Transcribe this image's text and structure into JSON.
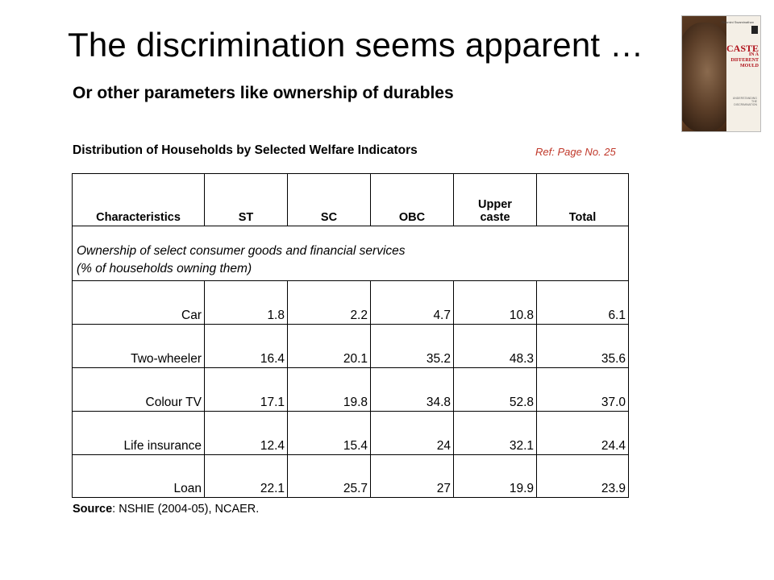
{
  "slide": {
    "title": "The discrimination seems apparent …",
    "subtitle": "Or other parameters like ownership of durables",
    "caption": "Distribution of Households by Selected Welfare Indicators",
    "reference": "Ref: Page No. 25"
  },
  "book_cover": {
    "author": "Rukmini Swaminathan",
    "title_lines": [
      "CASTE",
      "IN A",
      "DIFFERENT",
      "MOULD"
    ],
    "tagline": "UNDERSTANDING THE DISCRIMINATION",
    "accent_color": "#b0121b"
  },
  "table": {
    "headers": {
      "characteristics": "Characteristics",
      "st": "ST",
      "sc": "SC",
      "obc": "OBC",
      "upper_caste": "Upper caste",
      "total": "Total"
    },
    "section_line1": "Ownership of select consumer goods and financial services",
    "section_line2": "(% of households owning them)",
    "rows": [
      {
        "label": "Car",
        "st": "1.8",
        "sc": "2.2",
        "obc": "4.7",
        "upper": "10.8",
        "total": "6.1"
      },
      {
        "label": "Two-wheeler",
        "st": "16.4",
        "sc": "20.1",
        "obc": "35.2",
        "upper": "48.3",
        "total": "35.6"
      },
      {
        "label": "Colour TV",
        "st": "17.1",
        "sc": "19.8",
        "obc": "34.8",
        "upper": "52.8",
        "total": "37.0"
      },
      {
        "label": "Life insurance",
        "st": "12.4",
        "sc": "15.4",
        "obc": "24",
        "upper": "32.1",
        "total": "24.4"
      },
      {
        "label": "Loan",
        "st": "22.1",
        "sc": "25.7",
        "obc": "27",
        "upper": "19.9",
        "total": "23.9"
      }
    ]
  },
  "source": {
    "label": "Source",
    "text": ": NSHIE (2004-05), NCAER."
  }
}
